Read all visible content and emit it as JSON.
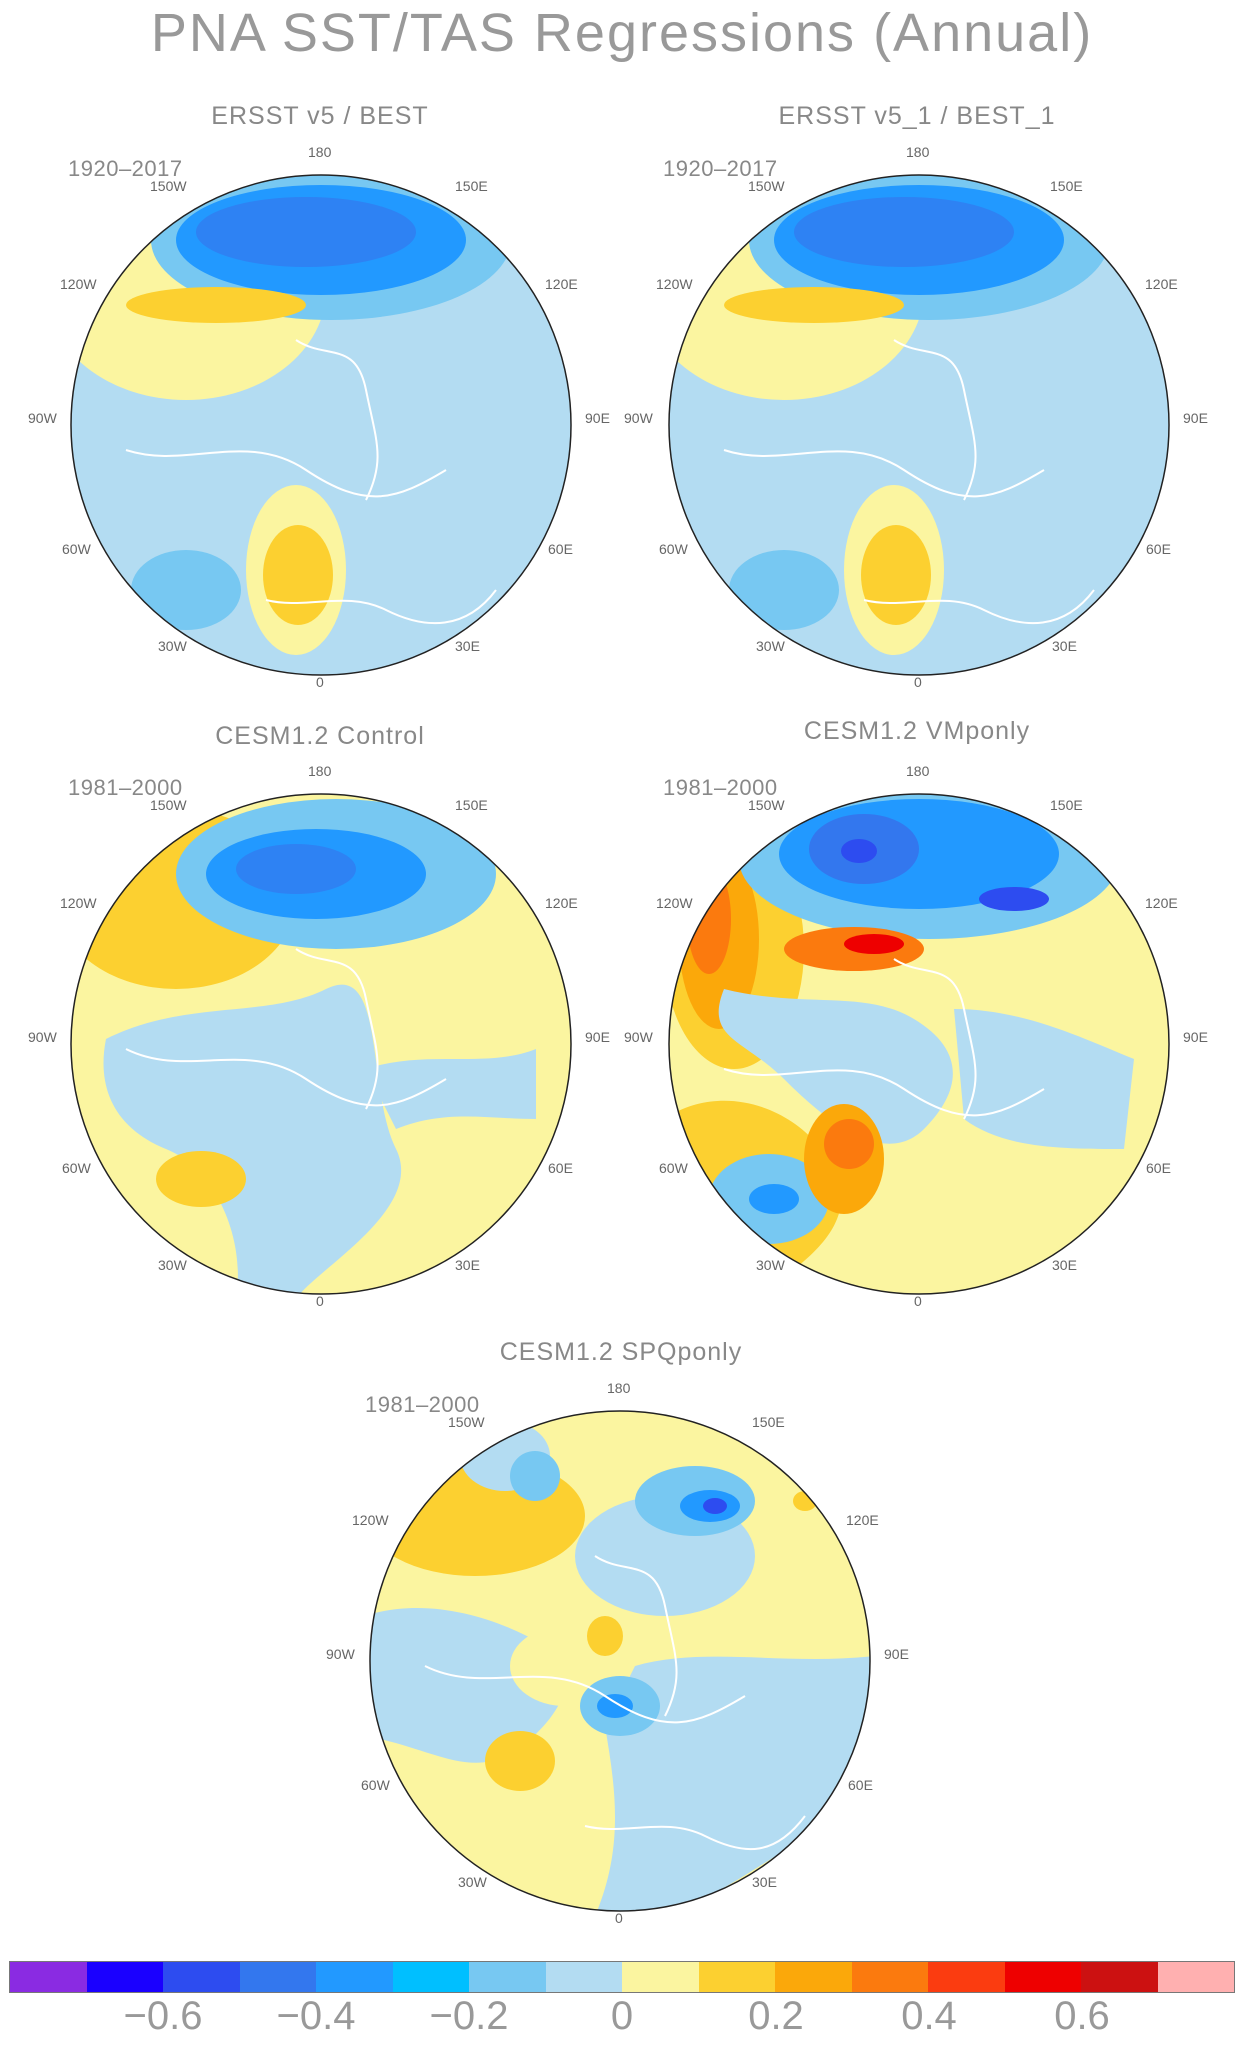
{
  "title": "PNA SST/TAS Regressions (Annual)",
  "panels": [
    {
      "title": "ERSST v5 / BEST",
      "period": "1920–2017"
    },
    {
      "title": "ERSST v5_1 / BEST_1",
      "period": "1920–2017"
    },
    {
      "title": "CESM1.2 Control",
      "period": "1981–2000"
    },
    {
      "title": "CESM1.2 VMponly",
      "period": "1981–2000"
    },
    {
      "title": "CESM1.2 SPQponly",
      "period": "1981–2000"
    }
  ],
  "longitude_labels": {
    "top": "180",
    "top_right": "150E",
    "upper_right": "120E",
    "right": "90E",
    "lower_right": "60E",
    "bottom_right": "30E",
    "bottom": "0",
    "bottom_left": "30W",
    "lower_left": "60W",
    "left": "90W",
    "upper_left": "120W",
    "top_left": "150W"
  },
  "colorbar": {
    "colors": [
      "#8a2be2",
      "#1a00ff",
      "#2d4cf0",
      "#3377ee",
      "#2299ff",
      "#00bfff",
      "#77c8f2",
      "#b3dcf2",
      "#fbf5a0",
      "#fcd030",
      "#fba80a",
      "#fb7a0e",
      "#fb3c10",
      "#ee0000",
      "#cc1111",
      "#ffb0b0"
    ],
    "labels": [
      "−0.6",
      "−0.4",
      "−0.2",
      "0",
      "0.2",
      "0.4",
      "0.6"
    ]
  },
  "palette": {
    "land_background": "#b3dcf2",
    "coast": "#ffffff"
  }
}
